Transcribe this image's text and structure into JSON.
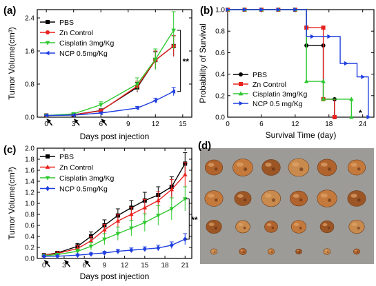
{
  "chart_data": [
    {
      "panel": "(a)",
      "type": "line",
      "xlabel": "Days post injection",
      "ylabel": "Tumor Volume(cm³)",
      "xlim": [
        -1,
        16
      ],
      "ylim": [
        0,
        2.6
      ],
      "xticks": [
        0,
        3,
        6,
        9,
        12,
        15
      ],
      "yticks": [
        0.0,
        0.8,
        1.6,
        2.4
      ],
      "ytick_labels": [
        "0.0",
        "0.8",
        "1.6",
        "2.4"
      ],
      "x": [
        0,
        3,
        6,
        10,
        12,
        14
      ],
      "series": [
        {
          "name": "PBS",
          "color": "#000000",
          "marker": "square",
          "values": [
            0.04,
            0.06,
            0.16,
            0.72,
            1.38,
            1.72
          ],
          "errors": [
            0.01,
            0.02,
            0.04,
            0.12,
            0.2,
            0.25
          ]
        },
        {
          "name": "Zn Control",
          "color": "#e8221f",
          "marker": "circle",
          "values": [
            0.04,
            0.06,
            0.15,
            0.75,
            1.38,
            1.72
          ],
          "errors": [
            0.01,
            0.02,
            0.04,
            0.12,
            0.22,
            0.25
          ]
        },
        {
          "name": "Cisplatin 3mg/Kg",
          "color": "#2ec82e",
          "marker": "triangle-down",
          "values": [
            0.04,
            0.08,
            0.3,
            0.8,
            1.4,
            2.1
          ],
          "errors": [
            0.01,
            0.02,
            0.07,
            0.15,
            0.25,
            0.45
          ]
        },
        {
          "name": "NCP 0.5mg/Kg",
          "color": "#1f3fe0",
          "marker": "triangle-left",
          "values": [
            0.04,
            0.05,
            0.1,
            0.22,
            0.4,
            0.62
          ],
          "errors": [
            0.01,
            0.01,
            0.02,
            0.04,
            0.06,
            0.1
          ]
        }
      ],
      "injection_days": [
        0,
        3,
        6
      ],
      "significance": "**",
      "legend": "top-left"
    },
    {
      "panel": "(b)",
      "type": "line",
      "step": true,
      "xlabel": "Survival Time (day)",
      "ylabel": "Probability of Survival",
      "xlim": [
        0,
        26
      ],
      "ylim": [
        0,
        1.0
      ],
      "xticks": [
        0,
        6,
        12,
        18,
        24
      ],
      "yticks": [
        0.0,
        0.2,
        0.4,
        0.6,
        0.8,
        1.0
      ],
      "ytick_labels": [
        "0.0",
        "0.2",
        "0.4",
        "0.6",
        "0.8",
        "1.0"
      ],
      "series": [
        {
          "name": "PBS",
          "color": "#000000",
          "marker": "circle",
          "x": [
            0,
            14,
            17,
            19
          ],
          "values": [
            1.0,
            0.667,
            0.167,
            0.0
          ],
          "markers_at": [
            [
              0,
              1.0
            ],
            [
              3,
              1.0
            ],
            [
              6,
              1.0
            ],
            [
              9,
              1.0
            ],
            [
              12,
              1.0
            ],
            [
              14,
              0.667
            ],
            [
              17,
              0.667
            ],
            [
              17,
              0.167
            ],
            [
              19,
              0.167
            ],
            [
              19,
              0.0
            ]
          ]
        },
        {
          "name": "Zn Control",
          "color": "#e8221f",
          "marker": "square",
          "x": [
            0,
            14,
            17,
            19
          ],
          "values": [
            1.0,
            0.833,
            0.167,
            0.0
          ],
          "markers_at": [
            [
              0,
              1.0
            ],
            [
              3,
              1.0
            ],
            [
              6,
              1.0
            ],
            [
              9,
              1.0
            ],
            [
              12,
              1.0
            ],
            [
              14,
              0.833
            ],
            [
              17,
              0.833
            ],
            [
              17,
              0.167
            ],
            [
              19,
              0.0
            ]
          ]
        },
        {
          "name": "Cisplatin 3mg/Kg",
          "color": "#2ec82e",
          "marker": "triangle-up",
          "x": [
            0,
            14,
            17,
            22
          ],
          "values": [
            1.0,
            0.333,
            0.167,
            0.0
          ],
          "markers_at": [
            [
              0,
              1.0
            ],
            [
              3,
              1.0
            ],
            [
              6,
              1.0
            ],
            [
              9,
              1.0
            ],
            [
              12,
              1.0
            ],
            [
              14,
              0.333
            ],
            [
              17,
              0.333
            ],
            [
              17,
              0.167
            ],
            [
              22,
              0.167
            ],
            [
              22,
              0.0
            ]
          ]
        },
        {
          "name": "NCP 0.5 mg/Kg",
          "color": "#1f3fe0",
          "marker": "triangle-right",
          "x": [
            0,
            14,
            20,
            23,
            25
          ],
          "values": [
            1.0,
            0.75,
            0.5,
            0.375,
            0.0
          ],
          "markers_at": [
            [
              0,
              1.0
            ],
            [
              3,
              1.0
            ],
            [
              6,
              1.0
            ],
            [
              9,
              1.0
            ],
            [
              12,
              1.0
            ],
            [
              15,
              0.75
            ],
            [
              18,
              0.75
            ],
            [
              21,
              0.5
            ],
            [
              24,
              0.375
            ],
            [
              25,
              0.0
            ]
          ]
        }
      ],
      "significance": "*",
      "legend": "bottom-left"
    },
    {
      "panel": "(c)",
      "type": "line",
      "xlabel": "Days post injection",
      "ylabel": "Tumor Volume(cm³)",
      "xlim": [
        -1,
        22
      ],
      "ylim": [
        0,
        2.0
      ],
      "xticks": [
        0,
        3,
        6,
        9,
        12,
        15,
        18,
        21
      ],
      "yticks": [
        0.0,
        0.2,
        0.4,
        0.6,
        0.8,
        1.0,
        1.2,
        1.4,
        1.6,
        1.8,
        2.0
      ],
      "ytick_labels": [
        "0.0",
        "0.2",
        "0.4",
        "0.6",
        "0.8",
        "1.0",
        "1.2",
        "1.4",
        "1.6",
        "1.8",
        "2.0"
      ],
      "x": [
        0,
        2,
        5,
        7,
        9,
        11,
        13,
        15,
        17,
        19,
        21
      ],
      "series": [
        {
          "name": "PBS",
          "color": "#000000",
          "marker": "square",
          "values": [
            0.06,
            0.1,
            0.22,
            0.4,
            0.6,
            0.78,
            0.92,
            1.05,
            1.15,
            1.3,
            1.72
          ],
          "errors": [
            0.02,
            0.03,
            0.05,
            0.08,
            0.1,
            0.12,
            0.13,
            0.15,
            0.15,
            0.18,
            0.2
          ]
        },
        {
          "name": "Zn Control",
          "color": "#e8221f",
          "marker": "triangle-up",
          "values": [
            0.06,
            0.09,
            0.18,
            0.32,
            0.52,
            0.68,
            0.8,
            0.92,
            1.05,
            1.25,
            1.52
          ],
          "errors": [
            0.02,
            0.03,
            0.05,
            0.08,
            0.1,
            0.12,
            0.13,
            0.15,
            0.16,
            0.18,
            0.22
          ]
        },
        {
          "name": "Cisplatin 3mg/Kg",
          "color": "#2ec82e",
          "marker": "triangle-down",
          "values": [
            0.05,
            0.07,
            0.13,
            0.22,
            0.35,
            0.45,
            0.55,
            0.65,
            0.78,
            0.9,
            1.08
          ],
          "errors": [
            0.01,
            0.02,
            0.04,
            0.07,
            0.1,
            0.12,
            0.14,
            0.16,
            0.18,
            0.2,
            0.22
          ]
        },
        {
          "name": "NCP 0.5mg/Kg",
          "color": "#1f3fe0",
          "marker": "diamond",
          "values": [
            0.04,
            0.04,
            0.06,
            0.08,
            0.1,
            0.13,
            0.15,
            0.17,
            0.19,
            0.24,
            0.35
          ],
          "errors": [
            0.01,
            0.01,
            0.02,
            0.02,
            0.03,
            0.03,
            0.04,
            0.04,
            0.05,
            0.06,
            0.1
          ]
        }
      ],
      "injection_days": [
        0,
        3,
        6
      ],
      "significance": "**",
      "legend": "top-left"
    }
  ],
  "photo_panel": {
    "panel": "(d)",
    "rows": 4,
    "cols": 6,
    "background": "#9d9b97",
    "tumor_colors": [
      "#b0632d",
      "#c47a3c",
      "#9c5525",
      "#c98a4e"
    ],
    "row_scale": [
      1.0,
      0.95,
      0.75,
      0.35
    ]
  }
}
